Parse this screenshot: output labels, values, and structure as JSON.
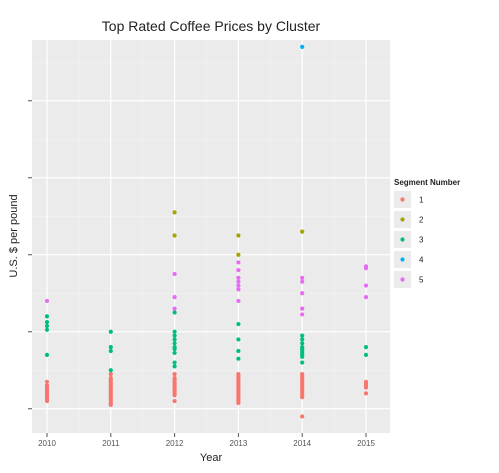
{
  "chart_data": {
    "type": "scatter",
    "title": "Top Rated Coffee Prices by Cluster",
    "xlabel": "Year",
    "ylabel": "U.S. $ per pound",
    "x_ticks": [
      "2010",
      "2011",
      "2012",
      "2013",
      "2014",
      "2015"
    ],
    "xlim": [
      2009.8,
      2015.2
    ],
    "ylim": [
      0,
      100
    ],
    "y_tick_values": [
      5,
      25,
      45,
      65,
      85,
      105
    ],
    "grid": true,
    "legend": {
      "title": "Segment Number",
      "position": "right",
      "entries": [
        "1",
        "2",
        "3",
        "4",
        "5"
      ]
    },
    "series": [
      {
        "name": "1",
        "color": "#F8766D",
        "points": [
          [
            2010,
            12
          ],
          [
            2010,
            11
          ],
          [
            2010,
            10.5
          ],
          [
            2010,
            10
          ],
          [
            2010,
            9.5
          ],
          [
            2010,
            9
          ],
          [
            2010,
            8.5
          ],
          [
            2010,
            8
          ],
          [
            2010,
            7.5
          ],
          [
            2010,
            7
          ],
          [
            2011,
            14
          ],
          [
            2011,
            13
          ],
          [
            2011,
            12.5
          ],
          [
            2011,
            12
          ],
          [
            2011,
            11.5
          ],
          [
            2011,
            11
          ],
          [
            2011,
            10.5
          ],
          [
            2011,
            10
          ],
          [
            2011,
            9.5
          ],
          [
            2011,
            9
          ],
          [
            2011,
            8.5
          ],
          [
            2011,
            8
          ],
          [
            2011,
            7.5
          ],
          [
            2011,
            7
          ],
          [
            2011,
            6.5
          ],
          [
            2011,
            6
          ],
          [
            2012,
            14
          ],
          [
            2012,
            13
          ],
          [
            2012,
            12.5
          ],
          [
            2012,
            12
          ],
          [
            2012,
            11.5
          ],
          [
            2012,
            11
          ],
          [
            2012,
            10.5
          ],
          [
            2012,
            10
          ],
          [
            2012,
            9.5
          ],
          [
            2012,
            9
          ],
          [
            2012,
            8.5
          ],
          [
            2012,
            7
          ],
          [
            2013,
            14
          ],
          [
            2013,
            13.5
          ],
          [
            2013,
            13
          ],
          [
            2013,
            12.5
          ],
          [
            2013,
            12
          ],
          [
            2013,
            11.5
          ],
          [
            2013,
            11
          ],
          [
            2013,
            10.5
          ],
          [
            2013,
            10
          ],
          [
            2013,
            9.5
          ],
          [
            2013,
            9
          ],
          [
            2013,
            8.5
          ],
          [
            2013,
            8
          ],
          [
            2013,
            7.5
          ],
          [
            2013,
            7
          ],
          [
            2013,
            6.5
          ],
          [
            2014,
            14
          ],
          [
            2014,
            13.5
          ],
          [
            2014,
            13
          ],
          [
            2014,
            12.5
          ],
          [
            2014,
            12
          ],
          [
            2014,
            11.5
          ],
          [
            2014,
            11
          ],
          [
            2014,
            10.5
          ],
          [
            2014,
            10
          ],
          [
            2014,
            9.5
          ],
          [
            2014,
            9
          ],
          [
            2014,
            8.5
          ],
          [
            2014,
            8
          ],
          [
            2014,
            3
          ],
          [
            2015,
            12
          ],
          [
            2015,
            11.5
          ],
          [
            2015,
            11
          ],
          [
            2015,
            10.5
          ],
          [
            2015,
            9
          ]
        ]
      },
      {
        "name": "2",
        "color": "#A3A500",
        "points": [
          [
            2012,
            56
          ],
          [
            2012,
            50
          ],
          [
            2013,
            50
          ],
          [
            2013,
            45
          ],
          [
            2014,
            51
          ]
        ]
      },
      {
        "name": "3",
        "color": "#00BF7D",
        "points": [
          [
            2010,
            29
          ],
          [
            2010,
            27.5
          ],
          [
            2010,
            26.5
          ],
          [
            2010,
            25.5
          ],
          [
            2010,
            19
          ],
          [
            2011,
            25
          ],
          [
            2011,
            21
          ],
          [
            2011,
            20
          ],
          [
            2011,
            15
          ],
          [
            2012,
            30
          ],
          [
            2012,
            25
          ],
          [
            2012,
            24
          ],
          [
            2012,
            23
          ],
          [
            2012,
            22
          ],
          [
            2012,
            21
          ],
          [
            2012,
            20.5
          ],
          [
            2012,
            19.5
          ],
          [
            2012,
            17
          ],
          [
            2012,
            16
          ],
          [
            2013,
            27
          ],
          [
            2013,
            23
          ],
          [
            2013,
            20
          ],
          [
            2013,
            18
          ],
          [
            2014,
            24
          ],
          [
            2014,
            23
          ],
          [
            2014,
            22
          ],
          [
            2014,
            21
          ],
          [
            2014,
            20.5
          ],
          [
            2014,
            20
          ],
          [
            2014,
            19.5
          ],
          [
            2014,
            19
          ],
          [
            2014,
            18.5
          ],
          [
            2014,
            17
          ],
          [
            2015,
            21
          ],
          [
            2015,
            19
          ]
        ]
      },
      {
        "name": "4",
        "color": "#00B0F6",
        "points": [
          [
            2014,
            99
          ]
        ]
      },
      {
        "name": "5",
        "color": "#E76BF3",
        "points": [
          [
            2010,
            33
          ],
          [
            2012,
            40
          ],
          [
            2012,
            34
          ],
          [
            2012,
            31
          ],
          [
            2013,
            43
          ],
          [
            2013,
            41
          ],
          [
            2013,
            39
          ],
          [
            2013,
            38
          ],
          [
            2013,
            37
          ],
          [
            2013,
            36
          ],
          [
            2013,
            33
          ],
          [
            2014,
            39
          ],
          [
            2014,
            38
          ],
          [
            2014,
            35
          ],
          [
            2014,
            31
          ],
          [
            2014,
            29.5
          ],
          [
            2015,
            42
          ],
          [
            2015,
            41.5
          ],
          [
            2015,
            37
          ],
          [
            2015,
            34
          ]
        ]
      }
    ]
  }
}
